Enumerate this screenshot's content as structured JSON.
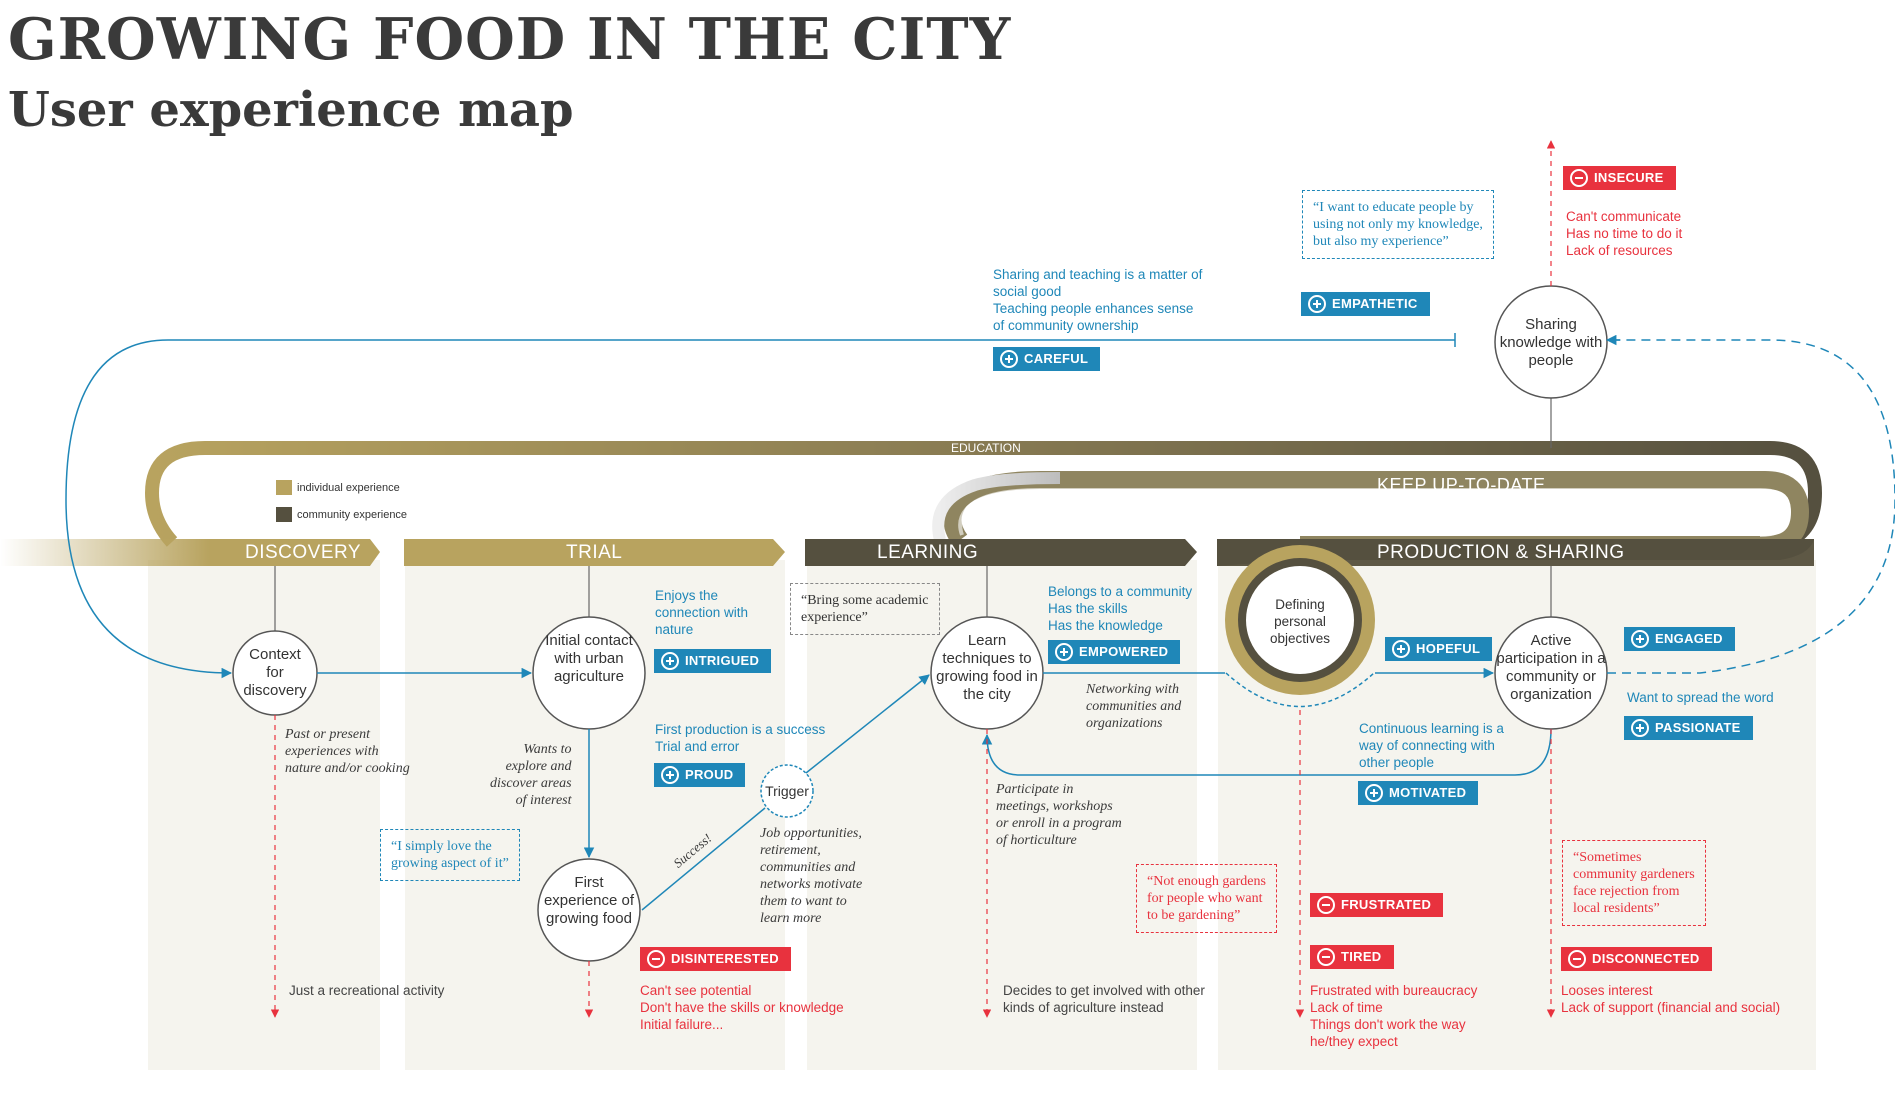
{
  "header": {
    "title": "GROWING FOOD IN THE CITY",
    "subtitle": "User experience map"
  },
  "colors": {
    "individual": "#b8a35f",
    "community": "#55503f",
    "positive": "#1f87b8",
    "negative": "#e8323e"
  },
  "legend": {
    "individual": "individual experience",
    "community": "community experience"
  },
  "bands": {
    "education": "EDUCATION",
    "keep_up_to_date": "KEEP UP-TO-DATE"
  },
  "phases": {
    "discovery": "DISCOVERY",
    "trial": "TRIAL",
    "learning": "LEARNING",
    "production": "PRODUCTION & SHARING"
  },
  "nodes": {
    "context": "Context for discovery",
    "initial": "Initial contact with urban agriculture",
    "first_exp": "First experience of growing food",
    "trigger": "Trigger",
    "learn": "Learn techniques to growing food in the city",
    "defining": "Defining personal objectives",
    "active": "Active participation in a community or organization",
    "sharing": "Sharing knowledge with people"
  },
  "labels": {
    "success": "Success!"
  },
  "notes": {
    "past_present": [
      "Past or present",
      "experiences with",
      "nature and/or cooking"
    ],
    "wants_explore": [
      "Wants to",
      "explore and",
      "discover areas",
      "of interest"
    ],
    "enjoys": [
      "Enjoys the",
      "connection with",
      "nature"
    ],
    "first_prod": [
      "First production is a success",
      "Trial and error"
    ],
    "job_opps": [
      "Job opportunities,",
      "retirement,",
      "communities and",
      "networks motivate",
      "them to want to",
      "learn more"
    ],
    "belongs": [
      "Belongs to a community",
      "Has the skills",
      "Has the knowledge"
    ],
    "networking": [
      "Networking with",
      "communities and",
      "organizations"
    ],
    "participate": [
      "Participate in",
      "meetings, workshops",
      "or enroll in a program",
      "of horticulture"
    ],
    "continuous": [
      "Continuous learning is a",
      "way of connecting with",
      "other people"
    ],
    "spread": "Want to spread the word",
    "sharing_teaching": [
      "Sharing and teaching is a matter of",
      "social good",
      "Teaching people enhances sense",
      "of community ownership"
    ]
  },
  "quotes": {
    "love": [
      "“I simply love the",
      "growing aspect of it”"
    ],
    "academic": [
      "“Bring some academic",
      "experience”"
    ],
    "gardens": [
      "“Not enough gardens",
      "for people who want",
      "to be gardening”"
    ],
    "educate": [
      "“I want to educate people by",
      "using not only my knowledge,",
      "but also my experience”"
    ],
    "rejection": [
      "“Sometimes",
      "community gardeners",
      "face rejection from",
      "local residents”"
    ]
  },
  "badges": {
    "intrigued": "INTRIGUED",
    "proud": "PROUD",
    "empowered": "EMPOWERED",
    "hopeful": "HOPEFUL",
    "engaged": "ENGAGED",
    "passionate": "PASSIONATE",
    "motivated": "MOTIVATED",
    "careful": "CAREFUL",
    "empathetic": "EMPATHETIC",
    "insecure": "INSECURE",
    "disinterested": "DISINTERESTED",
    "frustrated": "FRUSTRATED",
    "tired": "TIRED",
    "disconnected": "DISCONNECTED"
  },
  "exits": {
    "recreational": "Just a recreational activity",
    "trial": [
      "Can't see potential",
      "Don't have the skills or knowledge",
      "Initial failure..."
    ],
    "learning": [
      "Decides to get involved with other",
      "kinds of agriculture instead"
    ],
    "production": [
      "Frustrated with bureaucracy",
      "Lack of time",
      "Things don't work the way",
      "he/they expect"
    ],
    "sharing_neg": [
      "Can't communicate",
      "Has no time to do it",
      "Lack of resources"
    ],
    "active_neg": [
      "Looses interest",
      "Lack of support (financial and social)"
    ]
  }
}
